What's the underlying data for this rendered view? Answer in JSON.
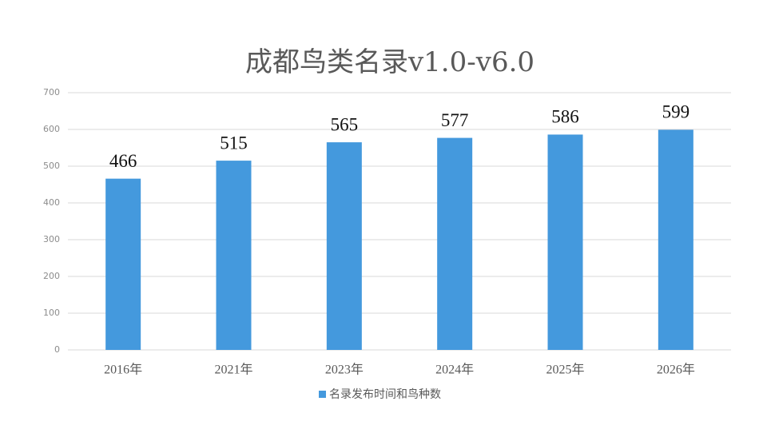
{
  "chart_data": {
    "type": "bar",
    "title": "成都鸟类名录v1.0-v6.0",
    "categories": [
      "2016年",
      "2021年",
      "2023年",
      "2024年",
      "2025年",
      "2026年"
    ],
    "series": [
      {
        "name": "名录发布时间和鸟种数",
        "color": "#4499dd",
        "values": [
          466,
          515,
          565,
          577,
          586,
          599
        ]
      }
    ],
    "ylim": [
      0,
      700
    ],
    "yticks": [
      0,
      100,
      200,
      300,
      400,
      500,
      600,
      700
    ],
    "grid": true,
    "legend": "bottom"
  }
}
